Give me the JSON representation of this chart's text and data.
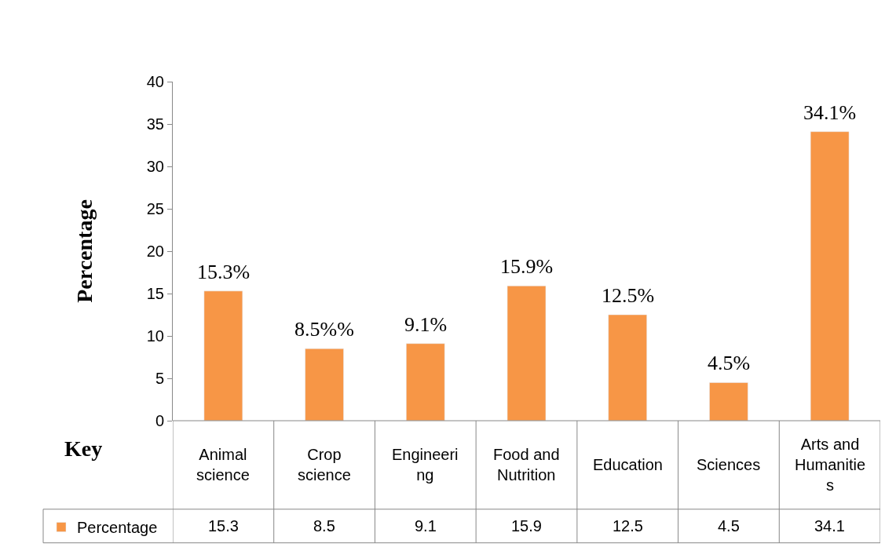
{
  "chart_data": {
    "type": "bar",
    "ylabel": "Percentage",
    "categories": [
      "Animal science",
      "Crop science",
      "Engineering",
      "Food and Nutrition",
      "Education",
      "Sciences",
      "Arts and Humanities"
    ],
    "series": [
      {
        "name": "Percentage",
        "color": "#f79646",
        "values": [
          15.3,
          8.5,
          9.1,
          15.9,
          12.5,
          4.5,
          34.1
        ]
      }
    ],
    "ylim": [
      0,
      40
    ],
    "yticks": [
      0,
      5,
      10,
      15,
      20,
      25,
      30,
      35,
      40
    ],
    "data_labels": true,
    "legend": "bottom left",
    "annotations": [
      "Key",
      {
        "text": "15.3%",
        "x": "Animal science",
        "y": 15.3
      },
      {
        "text": "8.5%%",
        "x": "Crop science",
        "y": 8.5
      },
      {
        "text": "9.1%",
        "x": "Engineering",
        "y": 9.1
      },
      {
        "text": "15.9%",
        "x": "Food and Nutrition",
        "y": 15.9
      },
      {
        "text": "12.5%",
        "x": "Education",
        "y": 12.5
      },
      {
        "text": "4.5%",
        "x": "Sciences",
        "y": 4.5
      },
      {
        "text": "34.1%",
        "x": "Arts and Humanities",
        "y": 34.1
      }
    ]
  }
}
